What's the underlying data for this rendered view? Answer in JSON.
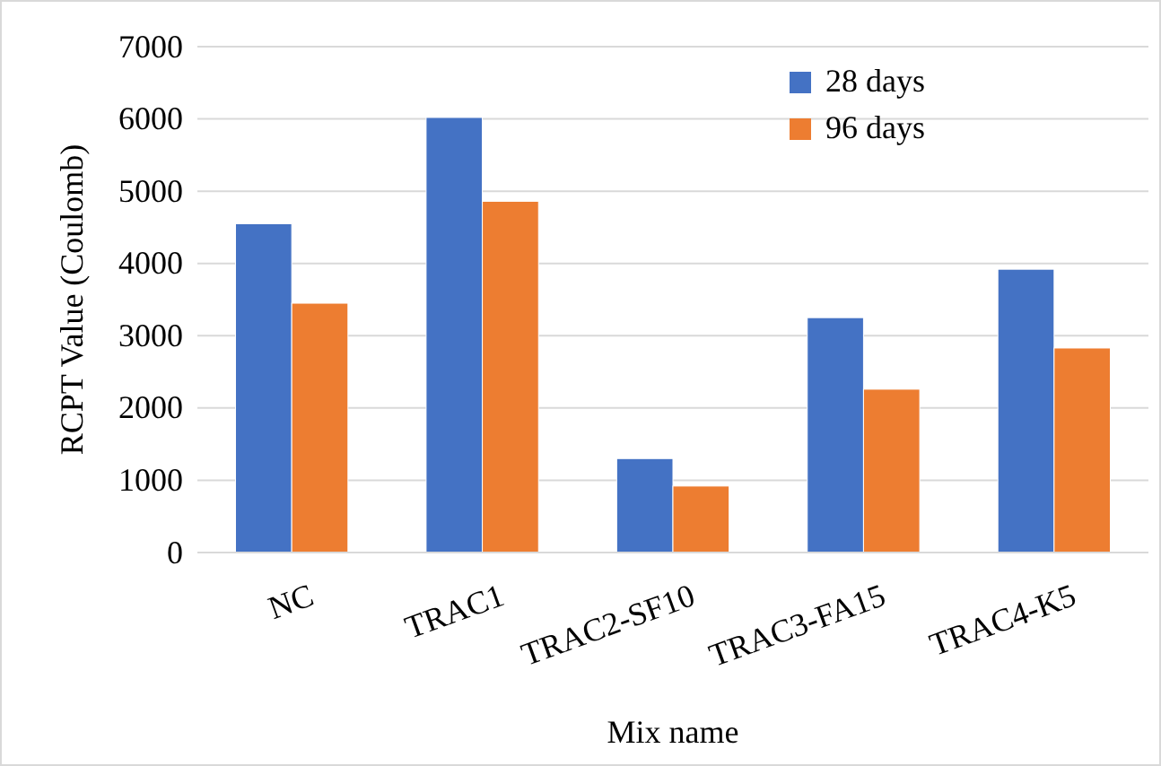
{
  "chart_data": {
    "type": "bar",
    "xlabel": "Mix name",
    "ylabel": "RCPT Value (Coulomb)",
    "categories": [
      "NC",
      "TRAC1",
      "TRAC2-SF10",
      "TRAC3-FA15",
      "TRAC4-K5"
    ],
    "series": [
      {
        "name": "28 days",
        "color": "#4472c4",
        "values": [
          4550,
          6020,
          1300,
          3250,
          3920
        ]
      },
      {
        "name": "96 days",
        "color": "#ed7d31",
        "values": [
          3450,
          4860,
          920,
          2260,
          2830
        ]
      }
    ],
    "ylim": [
      0,
      7000
    ],
    "yticks": [
      0,
      1000,
      2000,
      3000,
      4000,
      5000,
      6000,
      7000
    ],
    "grid": "y",
    "legend": "top right"
  }
}
